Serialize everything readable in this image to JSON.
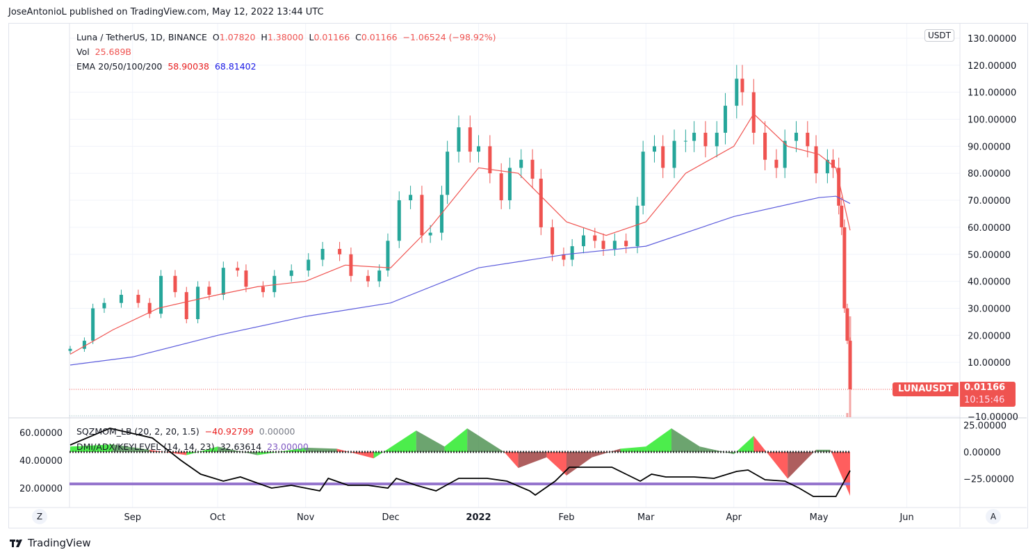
{
  "header": {
    "published": "JoseAntonioL published on TradingView.com, May 12, 2022 13:44 UTC"
  },
  "footer": {
    "brand": "TradingView",
    "logo": "tv-logo-icon"
  },
  "legend": {
    "symbol": "Luna / TetherUS, 1D, BINANCE",
    "o_label": "O",
    "o": "1.07820",
    "h_label": "H",
    "h": "1.38000",
    "l_label": "L",
    "l": "0.01166",
    "c_label": "C",
    "c": "0.01166",
    "change": "−1.06524 (−98.92%)",
    "vol_label": "Vol",
    "vol": "25.689B",
    "ema_label": "EMA 20/50/100/200",
    "ema20": "58.90038",
    "ema200": "68.81402",
    "sqz_label": "SQZMOM_LB (20, 2, 20, 1.5)",
    "sqz_val": "−40.92799",
    "sqz_val2": "0.00000",
    "dmi_label": "DMI/ADX/KEYLEVEL (14, 14, 23)",
    "dmi_val": "32.63614",
    "dmi_key": "23.00000"
  },
  "price_axis": {
    "currency": "USDT",
    "ticks": [
      "130.00000",
      "120.00000",
      "110.00000",
      "100.00000",
      "90.00000",
      "80.00000",
      "70.00000",
      "60.00000",
      "50.00000",
      "40.00000",
      "30.00000",
      "20.00000",
      "10.00000",
      "−10.00000"
    ],
    "tick_values": [
      130,
      120,
      110,
      100,
      90,
      80,
      70,
      60,
      50,
      40,
      30,
      20,
      10,
      -10
    ]
  },
  "last_price": {
    "symbol": "LUNAUSDT",
    "price": "0.01166",
    "countdown": "10:15:46",
    "value": 0.01166
  },
  "sqz_axis": {
    "ticks": [
      "25.00000",
      "0.00000",
      "−25.00000"
    ],
    "tick_values": [
      25,
      0,
      -25
    ]
  },
  "adx_axis": {
    "ticks": [
      "60.00000",
      "40.00000",
      "20.00000"
    ],
    "tick_values": [
      60,
      40,
      20
    ]
  },
  "time_axis": {
    "labels": [
      {
        "t": "Sep",
        "d": "2021-09-01"
      },
      {
        "t": "Oct",
        "d": "2021-10-01"
      },
      {
        "t": "Nov",
        "d": "2021-11-01"
      },
      {
        "t": "Dec",
        "d": "2021-12-01"
      },
      {
        "t": "2022",
        "d": "2022-01-01",
        "bold": true
      },
      {
        "t": "Feb",
        "d": "2022-02-01"
      },
      {
        "t": "Mar",
        "d": "2022-03-01"
      },
      {
        "t": "Apr",
        "d": "2022-04-01"
      },
      {
        "t": "May",
        "d": "2022-05-01"
      },
      {
        "t": "Jun",
        "d": "2022-06-01"
      }
    ],
    "zoom_btn": "Z",
    "auto_btn": "A"
  },
  "colors": {
    "up": "#26a69a",
    "down": "#ef5350",
    "ema20": "#f05350",
    "ema200": "#5b5bdc",
    "adx": "#000000",
    "keylevel": "#9575cd",
    "mom_pos_up": "#00e600",
    "mom_pos_down": "#2e7d32",
    "mom_neg_down": "#ff1a1a",
    "mom_neg_up": "#8b1a1a"
  },
  "chart_data": {
    "type": "candlestick",
    "title": "Luna / TetherUS, 1D, BINANCE",
    "ylim": [
      -10,
      135
    ],
    "closes": [
      [
        "2021-08-10",
        15
      ],
      [
        "2021-08-15",
        18
      ],
      [
        "2021-08-18",
        30
      ],
      [
        "2021-08-22",
        32
      ],
      [
        "2021-08-28",
        35
      ],
      [
        "2021-09-03",
        32
      ],
      [
        "2021-09-07",
        28
      ],
      [
        "2021-09-11",
        42
      ],
      [
        "2021-09-16",
        36
      ],
      [
        "2021-09-20",
        26
      ],
      [
        "2021-09-24",
        38
      ],
      [
        "2021-09-28",
        35
      ],
      [
        "2021-10-03",
        45
      ],
      [
        "2021-10-08",
        44
      ],
      [
        "2021-10-11",
        38
      ],
      [
        "2021-10-17",
        36
      ],
      [
        "2021-10-21",
        42
      ],
      [
        "2021-10-27",
        44
      ],
      [
        "2021-11-02",
        48
      ],
      [
        "2021-11-07",
        52
      ],
      [
        "2021-11-13",
        50
      ],
      [
        "2021-11-17",
        42
      ],
      [
        "2021-11-23",
        40
      ],
      [
        "2021-11-27",
        44
      ],
      [
        "2021-11-30",
        55
      ],
      [
        "2021-12-04",
        70
      ],
      [
        "2021-12-08",
        72
      ],
      [
        "2021-12-12",
        57
      ],
      [
        "2021-12-15",
        58
      ],
      [
        "2021-12-19",
        72
      ],
      [
        "2021-12-21",
        88
      ],
      [
        "2021-12-25",
        97
      ],
      [
        "2021-12-29",
        88
      ],
      [
        "2022-01-01",
        90
      ],
      [
        "2022-01-05",
        80
      ],
      [
        "2022-01-09",
        70
      ],
      [
        "2022-01-12",
        82
      ],
      [
        "2022-01-16",
        85
      ],
      [
        "2022-01-20",
        78
      ],
      [
        "2022-01-23",
        60
      ],
      [
        "2022-01-27",
        50
      ],
      [
        "2022-01-31",
        48
      ],
      [
        "2022-02-03",
        53
      ],
      [
        "2022-02-07",
        57
      ],
      [
        "2022-02-11",
        55
      ],
      [
        "2022-02-14",
        52
      ],
      [
        "2022-02-18",
        55
      ],
      [
        "2022-02-22",
        53
      ],
      [
        "2022-02-26",
        68
      ],
      [
        "2022-02-28",
        88
      ],
      [
        "2022-03-04",
        90
      ],
      [
        "2022-03-07",
        82
      ],
      [
        "2022-03-11",
        92
      ],
      [
        "2022-03-15",
        92
      ],
      [
        "2022-03-18",
        95
      ],
      [
        "2022-03-22",
        90
      ],
      [
        "2022-03-26",
        95
      ],
      [
        "2022-03-29",
        105
      ],
      [
        "2022-04-02",
        115
      ],
      [
        "2022-04-04",
        110
      ],
      [
        "2022-04-08",
        95
      ],
      [
        "2022-04-12",
        85
      ],
      [
        "2022-04-16",
        82
      ],
      [
        "2022-04-19",
        92
      ],
      [
        "2022-04-23",
        95
      ],
      [
        "2022-04-27",
        90
      ],
      [
        "2022-04-30",
        80
      ],
      [
        "2022-05-04",
        85
      ],
      [
        "2022-05-06",
        82
      ],
      [
        "2022-05-08",
        68
      ],
      [
        "2022-05-09",
        60
      ],
      [
        "2022-05-10",
        30
      ],
      [
        "2022-05-11",
        18
      ],
      [
        "2022-05-12",
        0.01166
      ]
    ],
    "ema20": [
      [
        "2021-08-10",
        13
      ],
      [
        "2021-08-25",
        22
      ],
      [
        "2021-09-10",
        30
      ],
      [
        "2021-10-01",
        35
      ],
      [
        "2021-10-15",
        38
      ],
      [
        "2021-11-01",
        40
      ],
      [
        "2021-11-15",
        46
      ],
      [
        "2021-12-01",
        45
      ],
      [
        "2021-12-15",
        60
      ],
      [
        "2022-01-01",
        82
      ],
      [
        "2022-01-15",
        80
      ],
      [
        "2022-02-01",
        62
      ],
      [
        "2022-02-15",
        57
      ],
      [
        "2022-03-01",
        62
      ],
      [
        "2022-03-15",
        80
      ],
      [
        "2022-04-01",
        90
      ],
      [
        "2022-04-08",
        102
      ],
      [
        "2022-04-20",
        90
      ],
      [
        "2022-05-01",
        87
      ],
      [
        "2022-05-07",
        82
      ],
      [
        "2022-05-12",
        58.9
      ]
    ],
    "ema200": [
      [
        "2021-08-10",
        9
      ],
      [
        "2021-09-01",
        12
      ],
      [
        "2021-10-01",
        20
      ],
      [
        "2021-11-01",
        27
      ],
      [
        "2021-12-01",
        32
      ],
      [
        "2022-01-01",
        45
      ],
      [
        "2022-02-01",
        50
      ],
      [
        "2022-03-01",
        53
      ],
      [
        "2022-04-01",
        64
      ],
      [
        "2022-05-01",
        71
      ],
      [
        "2022-05-07",
        71.5
      ],
      [
        "2022-05-12",
        68.8
      ]
    ],
    "volume": [
      [
        "2022-05-11",
        4
      ],
      [
        "2022-05-12",
        10
      ]
    ],
    "sqzmom": [
      [
        "2021-08-10",
        5
      ],
      [
        "2021-08-25",
        7
      ],
      [
        "2021-09-07",
        2
      ],
      [
        "2021-09-20",
        -3
      ],
      [
        "2021-10-01",
        5
      ],
      [
        "2021-10-15",
        -3
      ],
      [
        "2021-11-01",
        4
      ],
      [
        "2021-11-12",
        3
      ],
      [
        "2021-11-25",
        -6
      ],
      [
        "2021-12-10",
        20
      ],
      [
        "2021-12-20",
        5
      ],
      [
        "2021-12-28",
        22
      ],
      [
        "2022-01-10",
        0
      ],
      [
        "2022-01-15",
        -15
      ],
      [
        "2022-01-25",
        -5
      ],
      [
        "2022-02-01",
        -22
      ],
      [
        "2022-02-10",
        -5
      ],
      [
        "2022-02-20",
        3
      ],
      [
        "2022-03-01",
        5
      ],
      [
        "2022-03-10",
        22
      ],
      [
        "2022-03-20",
        5
      ],
      [
        "2022-04-01",
        -2
      ],
      [
        "2022-04-08",
        15
      ],
      [
        "2022-04-20",
        -25
      ],
      [
        "2022-04-30",
        2
      ],
      [
        "2022-05-05",
        2
      ],
      [
        "2022-05-12",
        -41
      ]
    ],
    "adx": [
      [
        "2021-08-10",
        51
      ],
      [
        "2021-08-24",
        63
      ],
      [
        "2021-09-08",
        56
      ],
      [
        "2021-09-18",
        40
      ],
      [
        "2021-09-25",
        30
      ],
      [
        "2021-10-03",
        25
      ],
      [
        "2021-10-09",
        28
      ],
      [
        "2021-10-20",
        20
      ],
      [
        "2021-10-27",
        22
      ],
      [
        "2021-11-06",
        18
      ],
      [
        "2021-11-09",
        27
      ],
      [
        "2021-11-16",
        22
      ],
      [
        "2021-11-23",
        22
      ],
      [
        "2021-11-30",
        20
      ],
      [
        "2021-12-03",
        27
      ],
      [
        "2021-12-10",
        22
      ],
      [
        "2021-12-17",
        18
      ],
      [
        "2021-12-25",
        27
      ],
      [
        "2022-01-04",
        27
      ],
      [
        "2022-01-11",
        25
      ],
      [
        "2022-01-19",
        18
      ],
      [
        "2022-01-21",
        15
      ],
      [
        "2022-01-28",
        25
      ],
      [
        "2022-02-02",
        35
      ],
      [
        "2022-02-17",
        35
      ],
      [
        "2022-02-22",
        30
      ],
      [
        "2022-02-27",
        25
      ],
      [
        "2022-03-03",
        30
      ],
      [
        "2022-03-08",
        28
      ],
      [
        "2022-03-18",
        28
      ],
      [
        "2022-03-25",
        27
      ],
      [
        "2022-04-02",
        32
      ],
      [
        "2022-04-06",
        33
      ],
      [
        "2022-04-12",
        26
      ],
      [
        "2022-04-19",
        25
      ],
      [
        "2022-04-24",
        20
      ],
      [
        "2022-04-29",
        14
      ],
      [
        "2022-05-07",
        14
      ],
      [
        "2022-05-12",
        32.6
      ]
    ],
    "keylevel": 23,
    "sqz_ylim": [
      -45,
      35
    ],
    "adx_ylim": [
      10,
      68
    ]
  }
}
